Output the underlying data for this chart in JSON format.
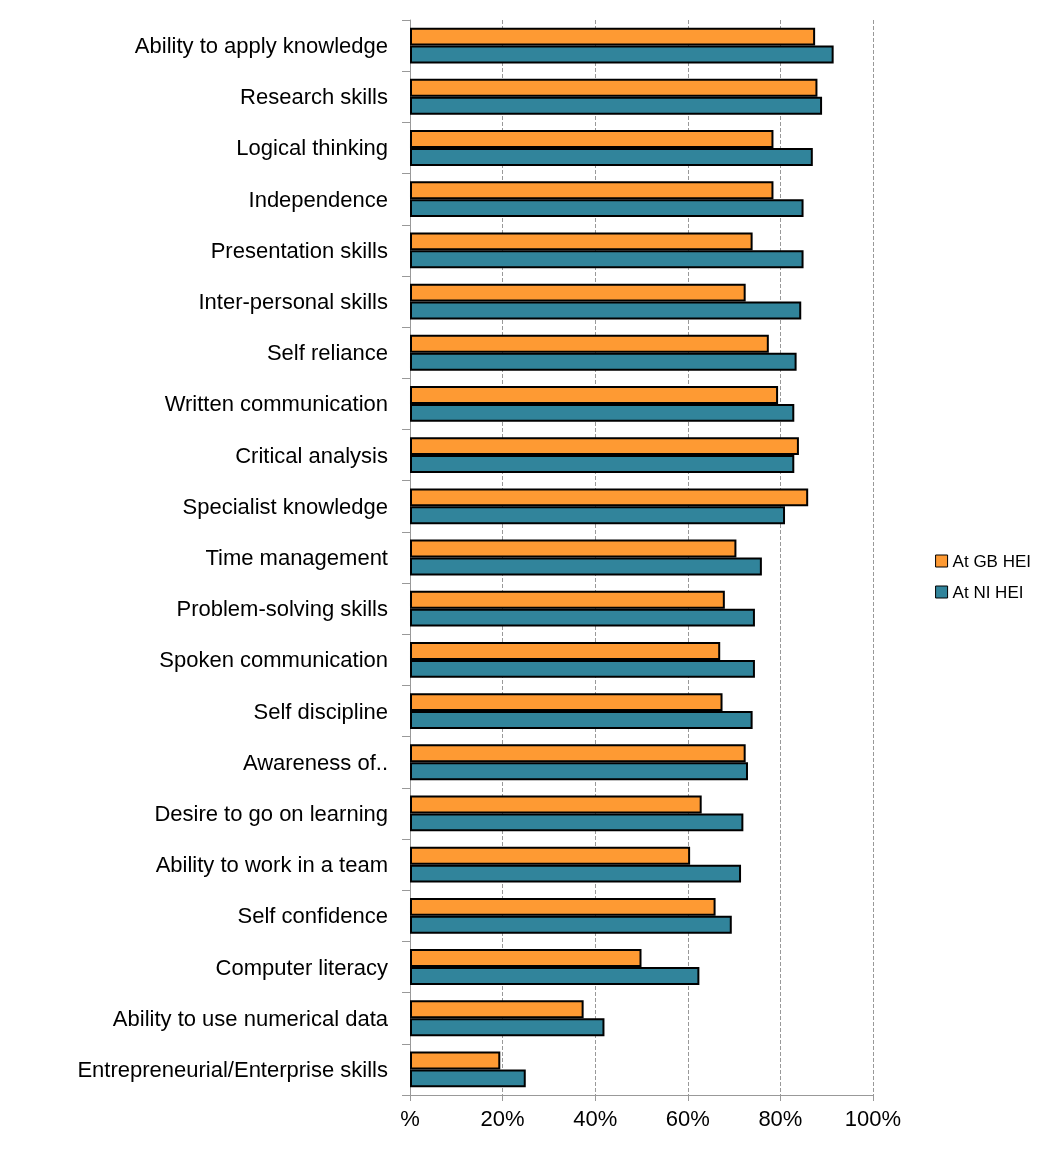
{
  "chart_data": {
    "type": "bar",
    "orientation": "horizontal",
    "categories": [
      "Ability to apply knowledge",
      "Research skills",
      "Logical thinking",
      "Independence",
      "Presentation skills",
      "Inter-personal skills",
      "Self reliance",
      "Written communication",
      "Critical analysis",
      "Specialist knowledge",
      "Time management",
      "Problem-solving skills",
      "Spoken communication",
      "Self discipline",
      "Awareness of..",
      "Desire to go on learning",
      "Ability to work in a team",
      "Self confidence",
      "Computer literacy",
      "Ability to use numerical data",
      "Entrepreneurial/Enterprise skills"
    ],
    "series": [
      {
        "name": "At GB HEI",
        "color": "#fe9a33",
        "values": [
          87.5,
          88,
          78.5,
          78.5,
          74,
          72.5,
          77.5,
          79.5,
          84,
          86,
          70.5,
          68,
          67,
          67.5,
          72.5,
          63,
          60.5,
          66,
          50,
          37.5,
          19.5
        ]
      },
      {
        "name": "At NI HEI",
        "color": "#31849b",
        "values": [
          91.5,
          89,
          87,
          85,
          85,
          84.5,
          83.5,
          83,
          83,
          81,
          76,
          74.5,
          74.5,
          74,
          73,
          72,
          71.5,
          69.5,
          62.5,
          42,
          25
        ]
      }
    ],
    "xlim": [
      0,
      100
    ],
    "xticks": [
      {
        "value": 0,
        "label": "%"
      },
      {
        "value": 20,
        "label": "20%"
      },
      {
        "value": 40,
        "label": "40%"
      },
      {
        "value": 60,
        "label": "60%"
      },
      {
        "value": 80,
        "label": "80%"
      },
      {
        "value": 100,
        "label": "100%"
      }
    ],
    "grid": "x",
    "legend": "right"
  }
}
